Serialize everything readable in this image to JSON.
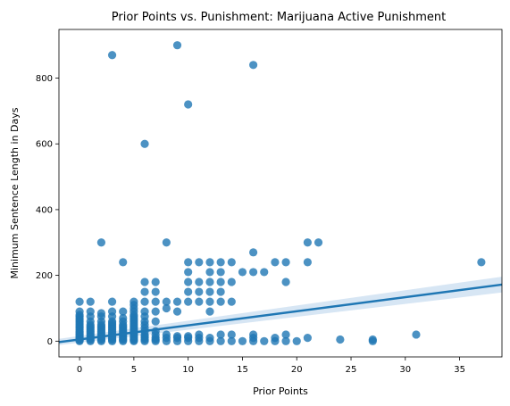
{
  "chart_data": {
    "type": "scatter",
    "title": "Prior Points vs. Punishment: Marijuana Active Punishment",
    "xlabel": "Prior Points",
    "ylabel": "Minimum Sentence Length in Days",
    "xlim": [
      -1.9,
      38.9
    ],
    "ylim": [
      -48,
      948
    ],
    "xticks": [
      0,
      5,
      10,
      15,
      20,
      25,
      30,
      35
    ],
    "yticks": [
      0,
      200,
      400,
      600,
      800
    ],
    "grid": false,
    "legend": "none",
    "point_color": "#1f77b4",
    "line_color": "#1f77b4",
    "ci_color": "#c6dbef",
    "regression": {
      "x": [
        -1.9,
        38.9
      ],
      "y": [
        -3,
        172
      ],
      "ci_lower": [
        -12,
        148
      ],
      "ci_upper": [
        7,
        196
      ]
    },
    "points": [
      {
        "x": 0,
        "y": 0
      },
      {
        "x": 0,
        "y": 3
      },
      {
        "x": 0,
        "y": 6
      },
      {
        "x": 0,
        "y": 10
      },
      {
        "x": 0,
        "y": 14
      },
      {
        "x": 0,
        "y": 18
      },
      {
        "x": 0,
        "y": 22
      },
      {
        "x": 0,
        "y": 26
      },
      {
        "x": 0,
        "y": 30
      },
      {
        "x": 0,
        "y": 35
      },
      {
        "x": 0,
        "y": 40
      },
      {
        "x": 0,
        "y": 45
      },
      {
        "x": 0,
        "y": 50
      },
      {
        "x": 0,
        "y": 55
      },
      {
        "x": 0,
        "y": 60
      },
      {
        "x": 0,
        "y": 65
      },
      {
        "x": 0,
        "y": 70
      },
      {
        "x": 0,
        "y": 75
      },
      {
        "x": 0,
        "y": 80
      },
      {
        "x": 0,
        "y": 90
      },
      {
        "x": 0,
        "y": 120
      },
      {
        "x": 1,
        "y": 0
      },
      {
        "x": 1,
        "y": 4
      },
      {
        "x": 1,
        "y": 8
      },
      {
        "x": 1,
        "y": 12
      },
      {
        "x": 1,
        "y": 16
      },
      {
        "x": 1,
        "y": 20
      },
      {
        "x": 1,
        "y": 25
      },
      {
        "x": 1,
        "y": 30
      },
      {
        "x": 1,
        "y": 35
      },
      {
        "x": 1,
        "y": 40
      },
      {
        "x": 1,
        "y": 45
      },
      {
        "x": 1,
        "y": 50
      },
      {
        "x": 1,
        "y": 60
      },
      {
        "x": 1,
        "y": 75
      },
      {
        "x": 1,
        "y": 90
      },
      {
        "x": 1,
        "y": 120
      },
      {
        "x": 2,
        "y": 0
      },
      {
        "x": 2,
        "y": 4
      },
      {
        "x": 2,
        "y": 8
      },
      {
        "x": 2,
        "y": 12
      },
      {
        "x": 2,
        "y": 16
      },
      {
        "x": 2,
        "y": 20
      },
      {
        "x": 2,
        "y": 25
      },
      {
        "x": 2,
        "y": 30
      },
      {
        "x": 2,
        "y": 35
      },
      {
        "x": 2,
        "y": 40
      },
      {
        "x": 2,
        "y": 45
      },
      {
        "x": 2,
        "y": 50
      },
      {
        "x": 2,
        "y": 60
      },
      {
        "x": 2,
        "y": 75
      },
      {
        "x": 2,
        "y": 85
      },
      {
        "x": 2,
        "y": 300
      },
      {
        "x": 3,
        "y": 0
      },
      {
        "x": 3,
        "y": 4
      },
      {
        "x": 3,
        "y": 8
      },
      {
        "x": 3,
        "y": 12
      },
      {
        "x": 3,
        "y": 16
      },
      {
        "x": 3,
        "y": 20
      },
      {
        "x": 3,
        "y": 25
      },
      {
        "x": 3,
        "y": 30
      },
      {
        "x": 3,
        "y": 35
      },
      {
        "x": 3,
        "y": 40
      },
      {
        "x": 3,
        "y": 45
      },
      {
        "x": 3,
        "y": 50
      },
      {
        "x": 3,
        "y": 55
      },
      {
        "x": 3,
        "y": 60
      },
      {
        "x": 3,
        "y": 75
      },
      {
        "x": 3,
        "y": 90
      },
      {
        "x": 3,
        "y": 120
      },
      {
        "x": 3,
        "y": 870
      },
      {
        "x": 4,
        "y": 0
      },
      {
        "x": 4,
        "y": 4
      },
      {
        "x": 4,
        "y": 8
      },
      {
        "x": 4,
        "y": 12
      },
      {
        "x": 4,
        "y": 16
      },
      {
        "x": 4,
        "y": 20
      },
      {
        "x": 4,
        "y": 25
      },
      {
        "x": 4,
        "y": 30
      },
      {
        "x": 4,
        "y": 35
      },
      {
        "x": 4,
        "y": 40
      },
      {
        "x": 4,
        "y": 45
      },
      {
        "x": 4,
        "y": 50
      },
      {
        "x": 4,
        "y": 60
      },
      {
        "x": 4,
        "y": 70
      },
      {
        "x": 4,
        "y": 90
      },
      {
        "x": 4,
        "y": 240
      },
      {
        "x": 5,
        "y": 0
      },
      {
        "x": 5,
        "y": 3
      },
      {
        "x": 5,
        "y": 6
      },
      {
        "x": 5,
        "y": 10
      },
      {
        "x": 5,
        "y": 14
      },
      {
        "x": 5,
        "y": 18
      },
      {
        "x": 5,
        "y": 22
      },
      {
        "x": 5,
        "y": 26
      },
      {
        "x": 5,
        "y": 30
      },
      {
        "x": 5,
        "y": 35
      },
      {
        "x": 5,
        "y": 40
      },
      {
        "x": 5,
        "y": 45
      },
      {
        "x": 5,
        "y": 50
      },
      {
        "x": 5,
        "y": 55
      },
      {
        "x": 5,
        "y": 60
      },
      {
        "x": 5,
        "y": 65
      },
      {
        "x": 5,
        "y": 70
      },
      {
        "x": 5,
        "y": 75
      },
      {
        "x": 5,
        "y": 80
      },
      {
        "x": 5,
        "y": 90
      },
      {
        "x": 5,
        "y": 100
      },
      {
        "x": 5,
        "y": 110
      },
      {
        "x": 5,
        "y": 120
      },
      {
        "x": 6,
        "y": 0
      },
      {
        "x": 6,
        "y": 5
      },
      {
        "x": 6,
        "y": 10
      },
      {
        "x": 6,
        "y": 15
      },
      {
        "x": 6,
        "y": 20
      },
      {
        "x": 6,
        "y": 30
      },
      {
        "x": 6,
        "y": 40
      },
      {
        "x": 6,
        "y": 50
      },
      {
        "x": 6,
        "y": 60
      },
      {
        "x": 6,
        "y": 75
      },
      {
        "x": 6,
        "y": 90
      },
      {
        "x": 6,
        "y": 120
      },
      {
        "x": 6,
        "y": 150
      },
      {
        "x": 6,
        "y": 180
      },
      {
        "x": 6,
        "y": 600
      },
      {
        "x": 7,
        "y": 0
      },
      {
        "x": 7,
        "y": 5
      },
      {
        "x": 7,
        "y": 10
      },
      {
        "x": 7,
        "y": 20
      },
      {
        "x": 7,
        "y": 30
      },
      {
        "x": 7,
        "y": 60
      },
      {
        "x": 7,
        "y": 90
      },
      {
        "x": 7,
        "y": 120
      },
      {
        "x": 7,
        "y": 150
      },
      {
        "x": 7,
        "y": 180
      },
      {
        "x": 8,
        "y": 0
      },
      {
        "x": 8,
        "y": 10
      },
      {
        "x": 8,
        "y": 20
      },
      {
        "x": 8,
        "y": 100
      },
      {
        "x": 8,
        "y": 120
      },
      {
        "x": 8,
        "y": 300
      },
      {
        "x": 9,
        "y": 0
      },
      {
        "x": 9,
        "y": 10
      },
      {
        "x": 9,
        "y": 15
      },
      {
        "x": 9,
        "y": 90
      },
      {
        "x": 9,
        "y": 120
      },
      {
        "x": 9,
        "y": 900
      },
      {
        "x": 10,
        "y": 0
      },
      {
        "x": 10,
        "y": 10
      },
      {
        "x": 10,
        "y": 15
      },
      {
        "x": 10,
        "y": 120
      },
      {
        "x": 10,
        "y": 150
      },
      {
        "x": 10,
        "y": 180
      },
      {
        "x": 10,
        "y": 210
      },
      {
        "x": 10,
        "y": 240
      },
      {
        "x": 10,
        "y": 720
      },
      {
        "x": 11,
        "y": 0
      },
      {
        "x": 11,
        "y": 10
      },
      {
        "x": 11,
        "y": 20
      },
      {
        "x": 11,
        "y": 120
      },
      {
        "x": 11,
        "y": 150
      },
      {
        "x": 11,
        "y": 180
      },
      {
        "x": 11,
        "y": 240
      },
      {
        "x": 12,
        "y": 0
      },
      {
        "x": 12,
        "y": 10
      },
      {
        "x": 12,
        "y": 90
      },
      {
        "x": 12,
        "y": 120
      },
      {
        "x": 12,
        "y": 150
      },
      {
        "x": 12,
        "y": 180
      },
      {
        "x": 12,
        "y": 210
      },
      {
        "x": 12,
        "y": 240
      },
      {
        "x": 13,
        "y": 0
      },
      {
        "x": 13,
        "y": 20
      },
      {
        "x": 13,
        "y": 120
      },
      {
        "x": 13,
        "y": 150
      },
      {
        "x": 13,
        "y": 180
      },
      {
        "x": 13,
        "y": 210
      },
      {
        "x": 13,
        "y": 240
      },
      {
        "x": 14,
        "y": 0
      },
      {
        "x": 14,
        "y": 20
      },
      {
        "x": 14,
        "y": 120
      },
      {
        "x": 14,
        "y": 180
      },
      {
        "x": 14,
        "y": 240
      },
      {
        "x": 15,
        "y": 0
      },
      {
        "x": 15,
        "y": 210
      },
      {
        "x": 16,
        "y": 0
      },
      {
        "x": 16,
        "y": 10
      },
      {
        "x": 16,
        "y": 20
      },
      {
        "x": 16,
        "y": 210
      },
      {
        "x": 16,
        "y": 270
      },
      {
        "x": 16,
        "y": 840
      },
      {
        "x": 17,
        "y": 0
      },
      {
        "x": 17,
        "y": 210
      },
      {
        "x": 18,
        "y": 0
      },
      {
        "x": 18,
        "y": 10
      },
      {
        "x": 18,
        "y": 240
      },
      {
        "x": 19,
        "y": 0
      },
      {
        "x": 19,
        "y": 20
      },
      {
        "x": 19,
        "y": 180
      },
      {
        "x": 19,
        "y": 240
      },
      {
        "x": 20,
        "y": 0
      },
      {
        "x": 21,
        "y": 10
      },
      {
        "x": 21,
        "y": 240
      },
      {
        "x": 21,
        "y": 300
      },
      {
        "x": 22,
        "y": 300
      },
      {
        "x": 24,
        "y": 5
      },
      {
        "x": 27,
        "y": 0
      },
      {
        "x": 27,
        "y": 5
      },
      {
        "x": 31,
        "y": 20
      },
      {
        "x": 37,
        "y": 240
      }
    ]
  }
}
